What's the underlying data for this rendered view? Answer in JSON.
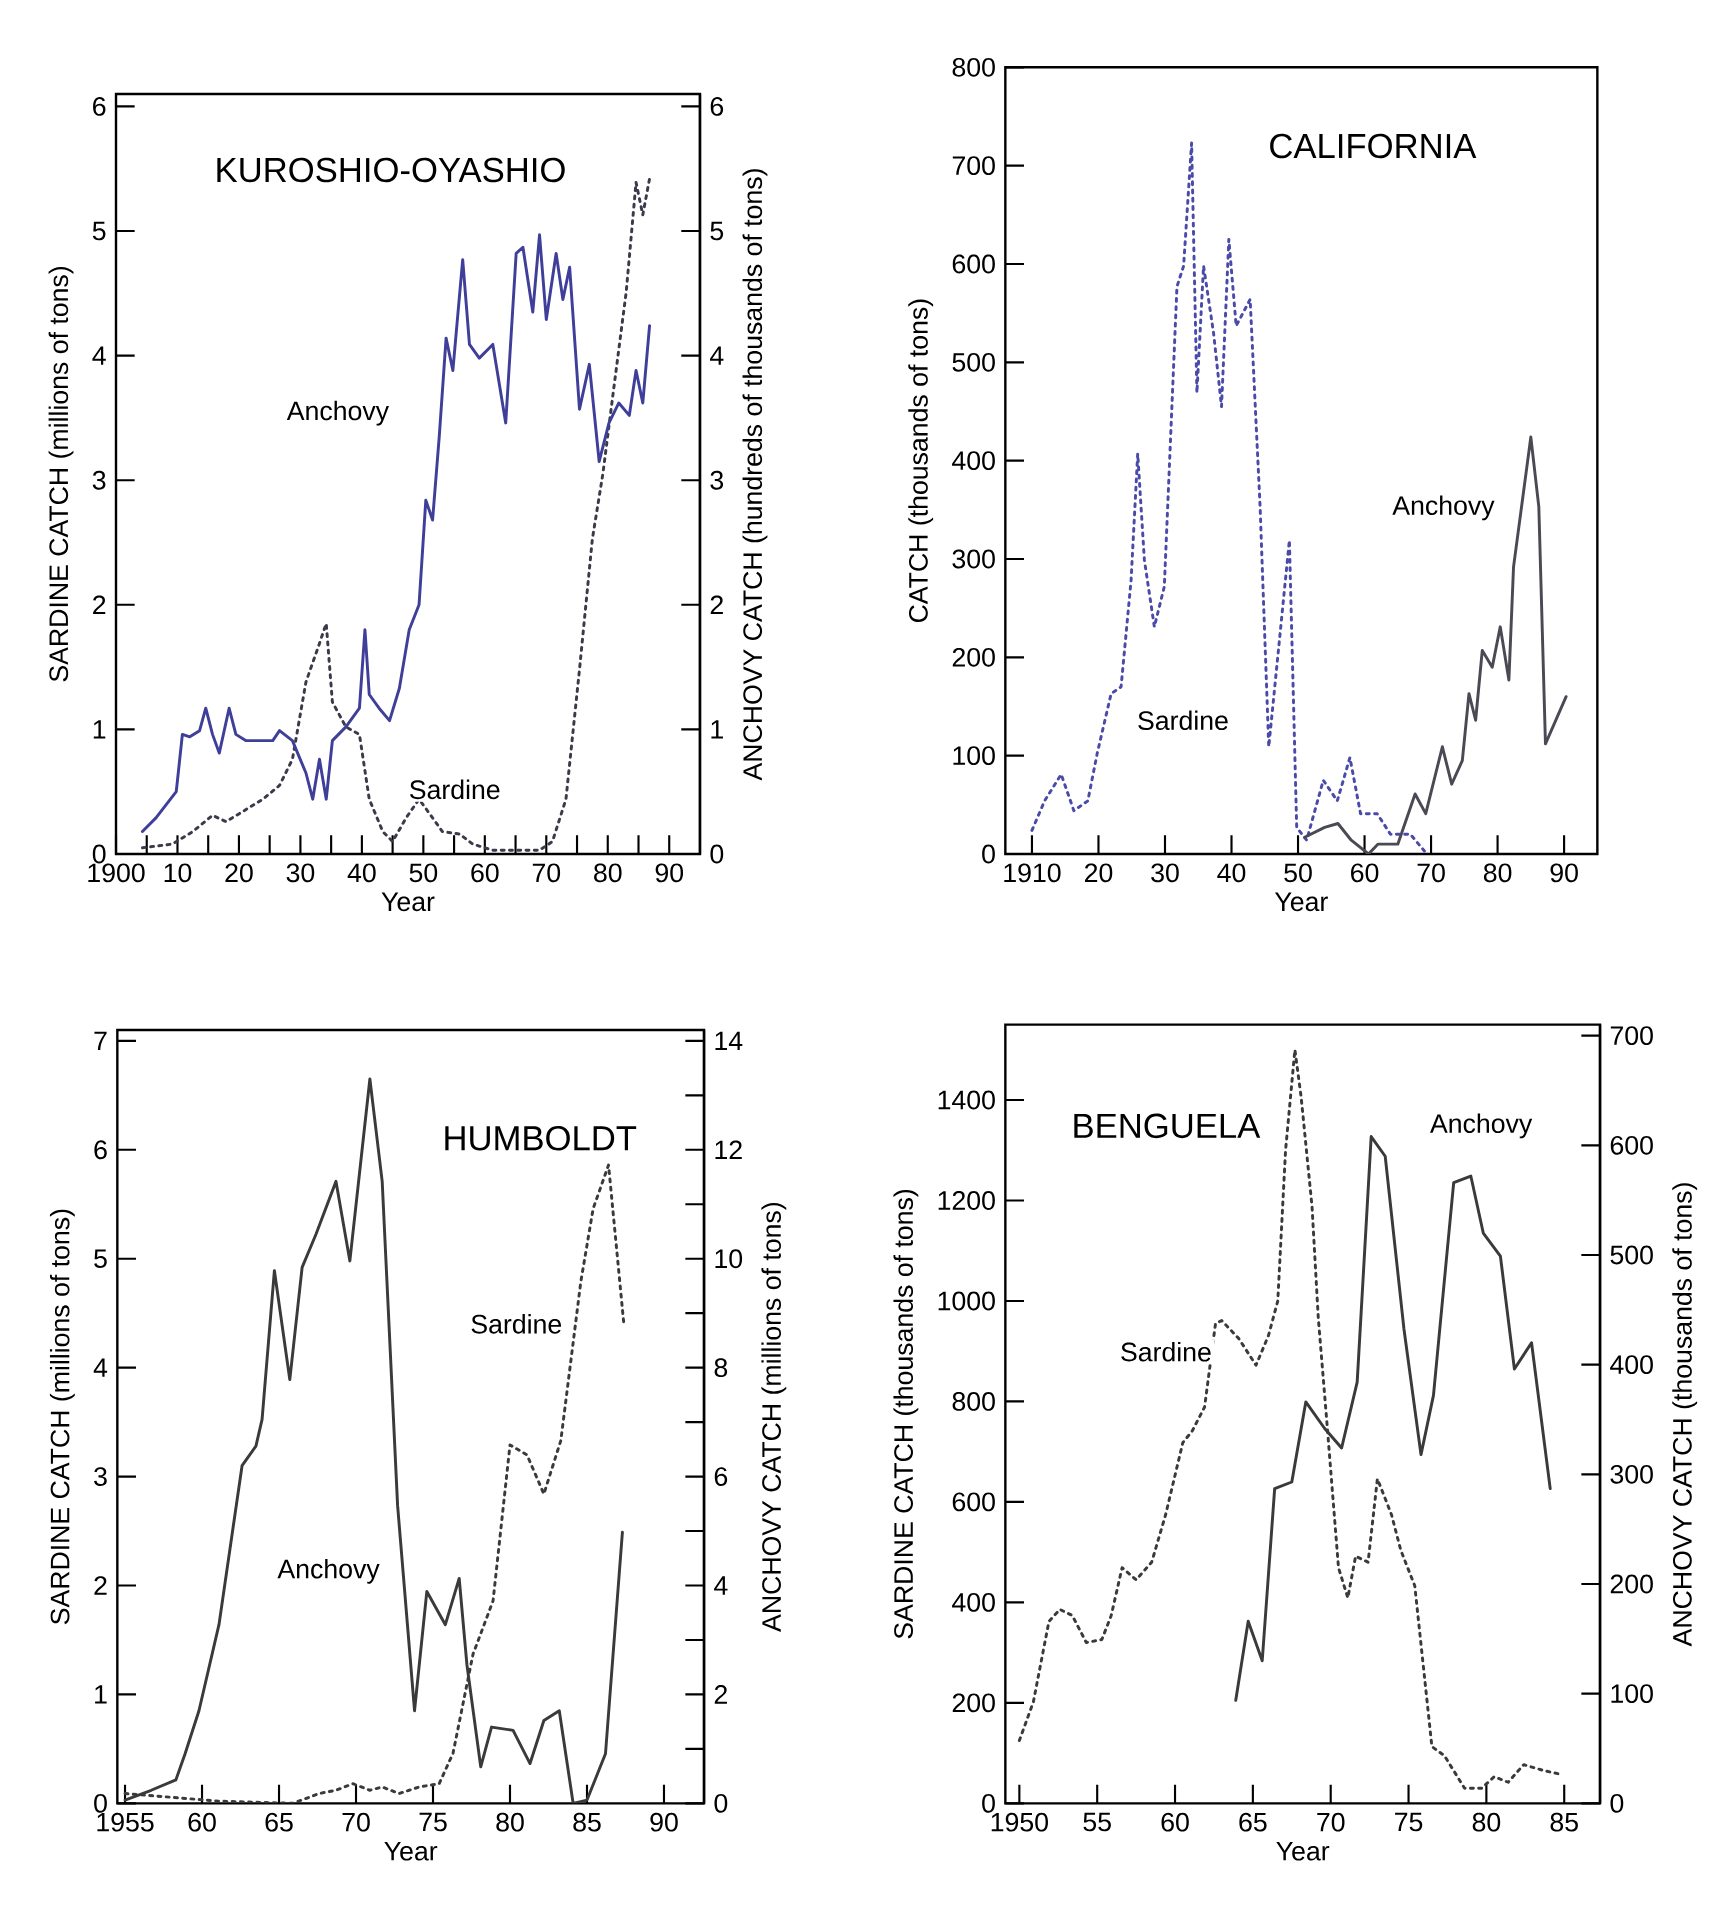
{
  "chart_data": [
    {
      "type": "line",
      "title": "KUROSHIO-OYASHIO",
      "xlabel": "Year",
      "ylabel": "SARDINE CATCH (millions of tons)",
      "y2label": "ANCHOVY CATCH (hundreds of thousands of tons)",
      "xlim": [
        1900,
        1995
      ],
      "xticks": [
        {
          "value": 1900,
          "label": "1900"
        },
        {
          "value": 1905,
          "label": null
        },
        {
          "value": 1910,
          "label": "10"
        },
        {
          "value": 1915,
          "label": null
        },
        {
          "value": 1920,
          "label": "20"
        },
        {
          "value": 1925,
          "label": null
        },
        {
          "value": 1930,
          "label": "30"
        },
        {
          "value": 1935,
          "label": null
        },
        {
          "value": 1940,
          "label": "40"
        },
        {
          "value": 1945,
          "label": null
        },
        {
          "value": 1950,
          "label": "50"
        },
        {
          "value": 1955,
          "label": null
        },
        {
          "value": 1960,
          "label": "60"
        },
        {
          "value": 1965,
          "label": null
        },
        {
          "value": 1970,
          "label": "70"
        },
        {
          "value": 1975,
          "label": null
        },
        {
          "value": 1980,
          "label": "80"
        },
        {
          "value": 1985,
          "label": null
        },
        {
          "value": 1990,
          "label": "90"
        }
      ],
      "ylim": [
        0,
        6.1
      ],
      "yticks": [
        0,
        1,
        2,
        3,
        4,
        5,
        6
      ],
      "y2lim": [
        0,
        6.1
      ],
      "y2ticks": [
        0,
        1,
        2,
        3,
        4,
        5,
        6
      ],
      "series": [
        {
          "name": "Anchovy",
          "color": "#3f3f9a",
          "axis": "y2",
          "line_style": "solid",
          "x": [
            1904.3,
            1906.5,
            1907.6,
            1909.8,
            1910.8,
            1912,
            1913.6,
            1914.6,
            1915.7,
            1916.8,
            1918.4,
            1919.5,
            1921.1,
            1923.3,
            1925.5,
            1926.6,
            1928.7,
            1930.9,
            1932,
            1933.1,
            1934.2,
            1935.2,
            1937.4,
            1939.6,
            1940.5,
            1941.2,
            1942.8,
            1944.5,
            1946.1,
            1947.7,
            1949.3,
            1950.4,
            1951.5,
            1952.6,
            1953.7,
            1954.8,
            1956.4,
            1957.5,
            1959.1,
            1961.3,
            1963.4,
            1965.1,
            1966.2,
            1967.8,
            1968.9,
            1970,
            1971.6,
            1972.7,
            1973.8,
            1975.4,
            1977,
            1978.6,
            1980.2,
            1981.8,
            1983.5,
            1984.6,
            1985.7,
            1986.8
          ],
          "values": [
            0.18,
            0.29,
            0.36,
            0.5,
            0.96,
            0.94,
            0.99,
            1.17,
            0.96,
            0.81,
            1.17,
            0.96,
            0.91,
            0.91,
            0.91,
            0.99,
            0.91,
            0.65,
            0.44,
            0.76,
            0.44,
            0.91,
            1.02,
            1.17,
            1.8,
            1.28,
            1.17,
            1.07,
            1.33,
            1.8,
            2.0,
            2.84,
            2.68,
            3.36,
            4.14,
            3.88,
            4.77,
            4.09,
            3.98,
            4.09,
            3.46,
            4.82,
            4.87,
            4.35,
            4.97,
            4.29,
            4.82,
            4.45,
            4.71,
            3.57,
            3.93,
            3.15,
            3.46,
            3.62,
            3.52,
            3.88,
            3.62,
            4.24
          ]
        },
        {
          "name": "Sardine",
          "color": "#3a3a4a",
          "line_style": "dotted",
          "x": [
            1904.3,
            1909.2,
            1912.5,
            1915.7,
            1917.9,
            1920.6,
            1923.9,
            1926.6,
            1928.7,
            1930.9,
            1933.1,
            1934.2,
            1935.2,
            1937.4,
            1939.6,
            1941.2,
            1943.4,
            1945,
            1947.2,
            1949.3,
            1951.5,
            1953.1,
            1955.9,
            1958,
            1961.3,
            1965.6,
            1968.9,
            1971,
            1973.2,
            1975.4,
            1977.5,
            1979.2,
            1980.8,
            1983,
            1984.6,
            1985.7,
            1986.8
          ],
          "values": [
            0.05,
            0.08,
            0.18,
            0.31,
            0.26,
            0.34,
            0.44,
            0.55,
            0.76,
            1.38,
            1.69,
            1.85,
            1.22,
            1.02,
            0.96,
            0.44,
            0.18,
            0.1,
            0.29,
            0.44,
            0.29,
            0.18,
            0.16,
            0.08,
            0.03,
            0.03,
            0.03,
            0.1,
            0.44,
            1.48,
            2.53,
            3.05,
            3.67,
            4.51,
            5.39,
            5.13,
            5.42
          ]
        }
      ]
    },
    {
      "type": "line",
      "title": "CALIFORNIA",
      "xlabel": "Year",
      "ylabel": "CATCH (thousands of tons)",
      "xlim": [
        1906,
        1995
      ],
      "xticks": [
        {
          "value": 1910,
          "label": "1910"
        },
        {
          "value": 1920,
          "label": "20"
        },
        {
          "value": 1930,
          "label": "30"
        },
        {
          "value": 1940,
          "label": "40"
        },
        {
          "value": 1950,
          "label": "50"
        },
        {
          "value": 1960,
          "label": "60"
        },
        {
          "value": 1970,
          "label": "70"
        },
        {
          "value": 1980,
          "label": "80"
        },
        {
          "value": 1990,
          "label": "90"
        }
      ],
      "ylim": [
        0,
        800
      ],
      "yticks": [
        0,
        100,
        200,
        300,
        400,
        500,
        600,
        700,
        800
      ],
      "series": [
        {
          "name": "Sardine",
          "color": "#4a4aa8",
          "line_style": "dotted",
          "x": [
            1910,
            1911.9,
            1914.4,
            1916.3,
            1918.4,
            1919.8,
            1921.9,
            1923.4,
            1924.9,
            1925.9,
            1926.9,
            1928.4,
            1929.9,
            1931.8,
            1932.8,
            1934,
            1934.8,
            1935.8,
            1937.3,
            1938.5,
            1939.6,
            1940.7,
            1942.8,
            1944.3,
            1945.6,
            1946.8,
            1948.7,
            1949.8,
            1951.3,
            1953.8,
            1955.9,
            1957.8,
            1959.4,
            1961.9,
            1963.9,
            1966.9,
            1969
          ],
          "values": [
            24,
            54,
            81,
            44,
            54,
            102,
            163,
            170,
            278,
            407,
            299,
            231,
            272,
            577,
            598,
            723,
            469,
            598,
            530,
            455,
            625,
            537,
            564,
            353,
            109,
            190,
            319,
            27,
            14,
            75,
            54,
            98,
            41,
            41,
            20,
            20,
            3
          ]
        },
        {
          "name": "Anchovy",
          "color": "#4a4a55",
          "line_style": "solid",
          "x": [
            1951,
            1954,
            1956,
            1958,
            1960.6,
            1962,
            1965,
            1967.6,
            1969.2,
            1971.7,
            1973.1,
            1974.7,
            1975.7,
            1976.7,
            1977.7,
            1979.2,
            1980.4,
            1981.7,
            1982.4,
            1985,
            1986.2,
            1987.2,
            1990.3
          ],
          "values": [
            17,
            27,
            31,
            14,
            0,
            10,
            10,
            61,
            41,
            109,
            71,
            95,
            163,
            136,
            207,
            190,
            231,
            177,
            292,
            424,
            353,
            112,
            160
          ]
        }
      ]
    },
    {
      "type": "line",
      "title": "HUMBOLDT",
      "xlabel": "Year",
      "ylabel": "SARDINE CATCH (millions of tons)",
      "y2label": "ANCHOVY CATCH (millions of tons)",
      "xlim": [
        1954.5,
        1992.6
      ],
      "xticks": [
        {
          "value": 1955,
          "label": "1955"
        },
        {
          "value": 1960,
          "label": "60"
        },
        {
          "value": 1965,
          "label": "65"
        },
        {
          "value": 1970,
          "label": "70"
        },
        {
          "value": 1975,
          "label": "75"
        },
        {
          "value": 1980,
          "label": "80"
        },
        {
          "value": 1985,
          "label": "85"
        },
        {
          "value": 1990,
          "label": "90"
        }
      ],
      "ylim": [
        0,
        7.1
      ],
      "yticks": [
        0,
        1,
        2,
        3,
        4,
        5,
        6,
        7
      ],
      "y2lim": [
        0,
        14.2
      ],
      "y2ticks": [
        0,
        {
          "value": 1,
          "label": null
        },
        2,
        {
          "value": 3,
          "label": null
        },
        4,
        {
          "value": 5,
          "label": null
        },
        6,
        {
          "value": 7,
          "label": null
        },
        8,
        {
          "value": 9,
          "label": null
        },
        10,
        {
          "value": 11,
          "label": null
        },
        12,
        {
          "value": 13,
          "label": null
        },
        14
      ],
      "series": [
        {
          "name": "Anchovy",
          "color": "#3a3a3a",
          "axis": "y2",
          "line_style": "solid",
          "x": [
            1955,
            1956.7,
            1958.3,
            1958.9,
            1959.8,
            1961.1,
            1962.6,
            1963.5,
            1963.9,
            1964.7,
            1965.7,
            1966.5,
            1967.4,
            1968.7,
            1969.6,
            1970.9,
            1971.7,
            1972.7,
            1973.8,
            1974.6,
            1975.8,
            1976.7,
            1977.2,
            1978.1,
            1978.8,
            1980.2,
            1981.3,
            1982.2,
            1983.2,
            1984.1,
            1985,
            1986.2,
            1987.3
          ],
          "values": [
            0.06,
            0.24,
            0.43,
            0.91,
            1.7,
            3.28,
            6.2,
            6.56,
            7.05,
            9.78,
            7.78,
            9.84,
            10.45,
            11.42,
            9.96,
            13.3,
            11.42,
            5.47,
            1.7,
            3.89,
            3.28,
            4.13,
            2.55,
            0.67,
            1.4,
            1.34,
            0.73,
            1.52,
            1.7,
            0,
            0.06,
            0.91,
            4.98
          ]
        },
        {
          "name": "Sardine",
          "color": "#3a3a3a",
          "line_style": "dotted",
          "x": [
            1955,
            1961.1,
            1965.9,
            1967.6,
            1968.7,
            1969.8,
            1970.9,
            1971.7,
            1972.8,
            1974.1,
            1975.4,
            1976.3,
            1977.6,
            1978.9,
            1980,
            1981.1,
            1982.2,
            1983.3,
            1984.6,
            1985.4,
            1986.4,
            1987.4
          ],
          "values": [
            0.09,
            0.02,
            0,
            0.09,
            0.12,
            0.18,
            0.12,
            0.15,
            0.09,
            0.15,
            0.18,
            0.46,
            1.37,
            1.86,
            3.29,
            3.2,
            2.84,
            3.33,
            4.79,
            5.46,
            5.86,
            4.39
          ]
        }
      ]
    },
    {
      "type": "line",
      "title": "BENGUELA",
      "xlabel": "Year",
      "ylabel": "SARDINE CATCH (thousands of tons)",
      "y2label": "ANCHOVY CATCH (thousands of tons)",
      "xlim": [
        1949.1,
        1987.3
      ],
      "xticks": [
        {
          "value": 1950,
          "label": "1950"
        },
        {
          "value": 1955,
          "label": "55"
        },
        {
          "value": 1960,
          "label": "60"
        },
        {
          "value": 1965,
          "label": "65"
        },
        {
          "value": 1970,
          "label": "70"
        },
        {
          "value": 1975,
          "label": "75"
        },
        {
          "value": 1980,
          "label": "80"
        },
        {
          "value": 1985,
          "label": "85"
        }
      ],
      "ylim": [
        0,
        1550
      ],
      "yticks": [
        0,
        200,
        400,
        600,
        800,
        1000,
        1200,
        1400
      ],
      "y2lim": [
        0,
        710
      ],
      "y2ticks": [
        0,
        100,
        200,
        300,
        400,
        500,
        600,
        700
      ],
      "series": [
        {
          "name": "Sardine",
          "color": "#3a3a3a",
          "line_style": "dotted",
          "x": [
            1950,
            1950.9,
            1951.9,
            1952.6,
            1953.4,
            1954.3,
            1955.3,
            1955.9,
            1956.6,
            1957.5,
            1958.5,
            1959.4,
            1960.5,
            1961.1,
            1961.9,
            1962.6,
            1963,
            1964.1,
            1965.2,
            1966,
            1966.6,
            1967.1,
            1967.7,
            1968.1,
            1968.8,
            1969.2,
            1969.8,
            1970.5,
            1971.1,
            1971.6,
            1972.4,
            1973,
            1973.9,
            1974.5,
            1975.4,
            1976.5,
            1977.3,
            1978.6,
            1979.7,
            1980.5,
            1981.4,
            1982.4,
            1983.7,
            1984.6
          ],
          "values": [
            125,
            202,
            362,
            386,
            374,
            320,
            326,
            374,
            469,
            445,
            480,
            575,
            718,
            741,
            789,
            955,
            961,
            925,
            872,
            931,
            1000,
            1300,
            1500,
            1406,
            1188,
            967,
            741,
            469,
            409,
            492,
            480,
            646,
            575,
            504,
            433,
            113,
            95,
            30,
            30,
            53,
            42,
            77,
            65,
            59
          ]
        },
        {
          "name": "Anchovy",
          "color": "#3a3a3a",
          "axis": "y2",
          "line_style": "solid",
          "x": [
            1963.9,
            1964.7,
            1965.6,
            1966.4,
            1967.5,
            1968.4,
            1969.6,
            1970.7,
            1971.7,
            1972.6,
            1973.5,
            1974.7,
            1975.8,
            1976.6,
            1977.9,
            1979,
            1979.8,
            1980.9,
            1981.8,
            1982.9,
            1984.1
          ],
          "values": [
            94,
            166,
            130,
            287,
            293,
            366,
            342,
            324,
            384,
            608,
            590,
            433,
            318,
            372,
            566,
            572,
            520,
            499,
            396,
            420,
            287
          ]
        }
      ]
    }
  ]
}
